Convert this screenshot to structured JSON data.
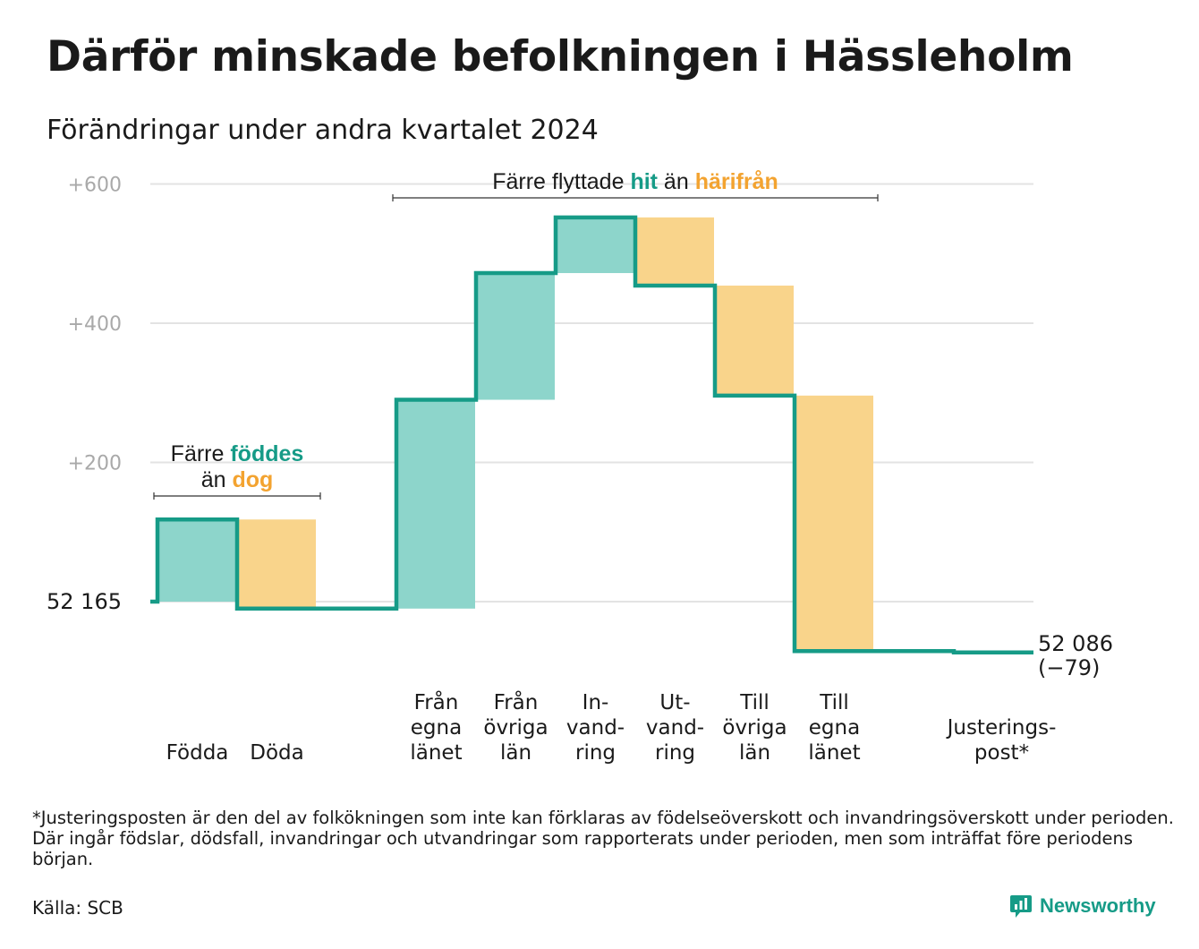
{
  "title": "Därför minskade befolkningen i Hässleholm",
  "subtitle": "Förändringar under andra kvartalet 2024",
  "chart_data": {
    "type": "waterfall",
    "start": {
      "value": 52165,
      "label": "52  165"
    },
    "end": {
      "value": 52086,
      "label": "52 086",
      "change_label": "(−79)"
    },
    "y_ticks": [
      {
        "value": 200,
        "label": "+200"
      },
      {
        "value": 400,
        "label": "+400"
      },
      {
        "value": 600,
        "label": "+600"
      }
    ],
    "ylim": [
      -95,
      640
    ],
    "grid": true,
    "steps": [
      {
        "label_lines": [
          "Födda"
        ],
        "change": 118,
        "kind": "in"
      },
      {
        "label_lines": [
          "Döda"
        ],
        "change": -128,
        "kind": "out"
      },
      {
        "label_lines": [],
        "change": 0,
        "kind": "none"
      },
      {
        "label_lines": [
          "Från",
          "egna",
          "länet"
        ],
        "change": 300,
        "kind": "in"
      },
      {
        "label_lines": [
          "Från",
          "övriga",
          "län"
        ],
        "change": 182,
        "kind": "in"
      },
      {
        "label_lines": [
          "In-",
          "vand-",
          "ring"
        ],
        "change": 80,
        "kind": "in"
      },
      {
        "label_lines": [
          "Ut-",
          "vand-",
          "ring"
        ],
        "change": -98,
        "kind": "out"
      },
      {
        "label_lines": [
          "Till",
          "övriga",
          "län"
        ],
        "change": -158,
        "kind": "out"
      },
      {
        "label_lines": [
          "Till",
          "egna",
          "länet"
        ],
        "change": -367,
        "kind": "out"
      },
      {
        "label_lines": [],
        "change": 0,
        "kind": "none"
      },
      {
        "label_lines": [
          "Justerings-",
          "post*"
        ],
        "change": -2,
        "kind": "adjust"
      }
    ],
    "annotations": [
      {
        "id": "births",
        "lines": [
          [
            {
              "text": "Färre ",
              "style": "plain"
            },
            {
              "text": "föddes",
              "style": "in"
            }
          ],
          [
            {
              "text": "än ",
              "style": "plain"
            },
            {
              "text": "dog",
              "style": "out"
            }
          ]
        ],
        "from_step": 0,
        "to_step": 1
      },
      {
        "id": "migration",
        "lines": [
          [
            {
              "text": "Färre flyttade ",
              "style": "plain"
            },
            {
              "text": "hit",
              "style": "in"
            },
            {
              "text": "  än ",
              "style": "plain"
            },
            {
              "text": "härifrån",
              "style": "out"
            }
          ]
        ],
        "from_step": 3,
        "to_step": 8
      }
    ],
    "colors": {
      "in_fill": "#8dd5cb",
      "out_fill": "#f9d48b",
      "line": "#169b87",
      "in_text": "#169b87",
      "out_text": "#f3a330",
      "grid": "#e3e3e3",
      "tick_text": "#a9a9a9"
    }
  },
  "footnote": "*Justeringsposten är den del av folkökningen som inte kan förklaras av födelseöverskott och invandringsöverskott under perioden. Där ingår födslar, dödsfall, invandringar och utvandringar som rapporterats under perioden, men som inträffat före periodens början.",
  "source": "Källa: SCB",
  "brand": {
    "name": "Newsworthy",
    "icon": "newsworthy-logo-icon"
  }
}
